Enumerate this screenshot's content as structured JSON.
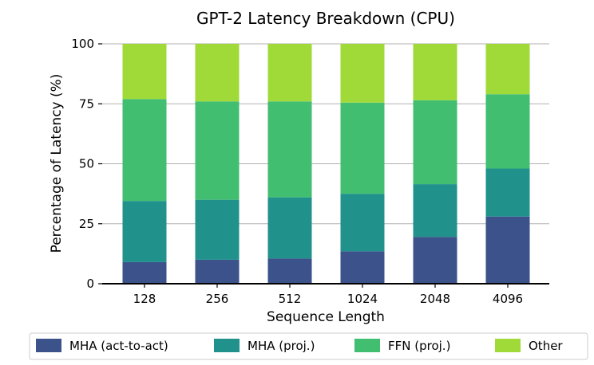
{
  "chart_data": {
    "type": "bar",
    "stacked": true,
    "title": "GPT-2 Latency Breakdown (CPU)",
    "xlabel": "Sequence Length",
    "ylabel": "Percentage of Latency (%)",
    "ylim": [
      0,
      100
    ],
    "yticks": [
      0,
      25,
      50,
      75,
      100
    ],
    "grid": true,
    "legend_position": "bottom",
    "categories": [
      "128",
      "256",
      "512",
      "1024",
      "2048",
      "4096"
    ],
    "series": [
      {
        "name": "MHA (act-to-act)",
        "color": "#3b528b",
        "values": [
          9,
          10,
          10.5,
          13.5,
          19.5,
          28
        ]
      },
      {
        "name": "MHA (proj.)",
        "color": "#21918c",
        "values": [
          25.5,
          25,
          25.5,
          24,
          22,
          20
        ]
      },
      {
        "name": "FFN (proj.)",
        "color": "#42be71",
        "values": [
          42.5,
          41,
          40,
          38,
          35,
          31
        ]
      },
      {
        "name": "Other",
        "color": "#a0da39",
        "values": [
          23,
          24,
          24,
          24.5,
          23.5,
          21
        ]
      }
    ]
  }
}
